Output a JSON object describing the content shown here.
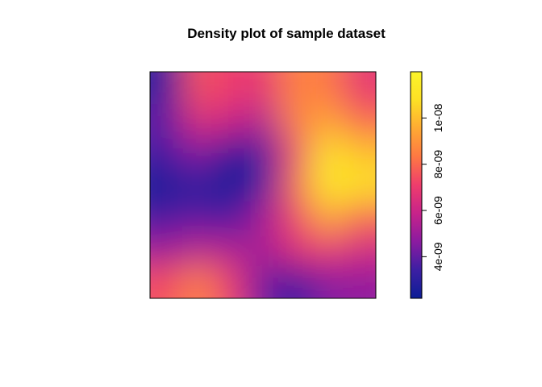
{
  "chart_data": {
    "type": "heatmap",
    "title": "Density plot of sample dataset",
    "xlabel": "",
    "ylabel": "",
    "axes_shown": false,
    "colorbar": {
      "placement": "right",
      "range": [
        2.2e-09,
        1.2e-08
      ],
      "ticks": [
        {
          "value": 4e-09,
          "label": "4e-09"
        },
        {
          "value": 6e-09,
          "label": "6e-09"
        },
        {
          "value": 8e-09,
          "label": "8e-09"
        },
        {
          "value": 1e-08,
          "label": "1e-08"
        }
      ],
      "palette": [
        "#0d1e96",
        "#3c1fa3",
        "#8b1ba0",
        "#c7238a",
        "#ef3d6c",
        "#fe7843",
        "#feaa33",
        "#fde025",
        "#fcf42a"
      ]
    },
    "grid_rows": 7,
    "grid_cols": 7,
    "values": [
      [
        3e-09,
        7.6e-09,
        7e-09,
        6.8e-09,
        8.6e-09,
        8.4e-09,
        6.8e-09
      ],
      [
        4e-09,
        6.6e-09,
        6e-09,
        5.4e-09,
        8.6e-09,
        9.4e-09,
        8e-09
      ],
      [
        3.6e-09,
        4.6e-09,
        2.6e-09,
        3.6e-09,
        7.2e-09,
        1.1e-08,
        1e-08
      ],
      [
        2.5e-09,
        3e-09,
        2.3e-09,
        3.4e-09,
        8e-09,
        1.15e-08,
        1.08e-08
      ],
      [
        3.6e-09,
        4e-09,
        3.4e-09,
        5.2e-09,
        7.2e-09,
        9.6e-09,
        8e-09
      ],
      [
        5e-09,
        5.6e-09,
        5.4e-09,
        5.2e-09,
        6.6e-09,
        7e-09,
        6.2e-09
      ],
      [
        7.4e-09,
        8.6e-09,
        7e-09,
        4.2e-09,
        3.2e-09,
        4.6e-09,
        4.8e-09
      ]
    ]
  }
}
